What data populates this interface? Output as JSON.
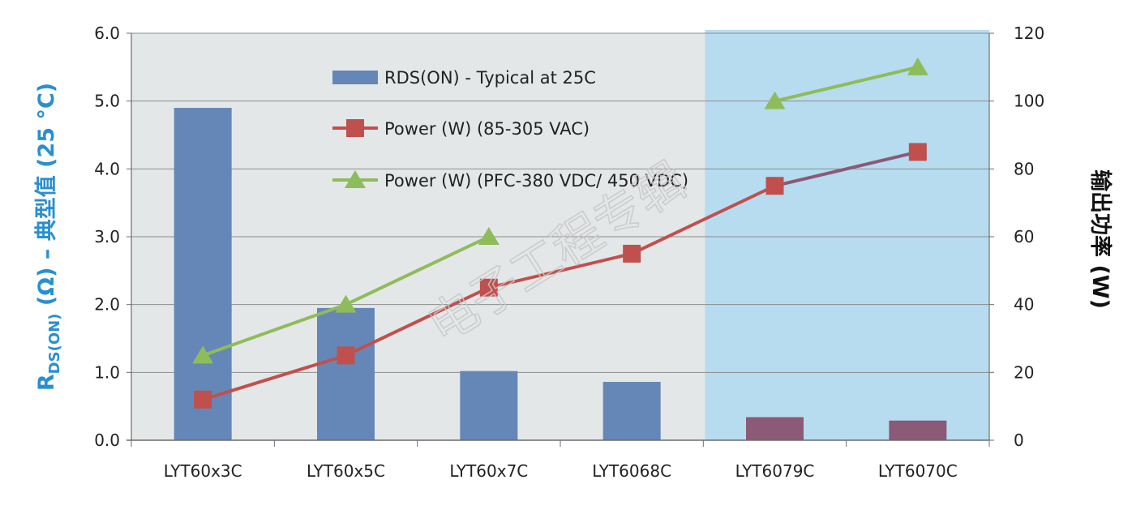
{
  "chart_data": {
    "type": "bar",
    "categories": [
      "LYT60x3C",
      "LYT60x5C",
      "LYT60x7C",
      "LYT6068C",
      "LYT6079C",
      "LYT6070C"
    ],
    "y_axis_left": {
      "label_main": "R",
      "label_sub": "DS(ON)",
      "label_rest": " (Ω) – 典型值 (25 °C)",
      "range": [
        0,
        6
      ],
      "ticks": [
        "0.0",
        "1.0",
        "2.0",
        "3.0",
        "4.0",
        "5.0",
        "6.0"
      ],
      "color": "#2a8fd0"
    },
    "y_axis_right": {
      "label": "输出功率 (W)",
      "range": [
        0,
        120
      ],
      "ticks": [
        "0",
        "20",
        "40",
        "60",
        "80",
        "100",
        "120"
      ]
    },
    "series": [
      {
        "name": "RDS(ON) - Typical at 25C",
        "kind": "bar",
        "axis": "left",
        "values": [
          4.9,
          1.95,
          1.02,
          0.86,
          0.34,
          0.29
        ],
        "color": "#6587b8",
        "highlight_color": "#8a5a76"
      },
      {
        "name": "Power (W) (85-305 VAC)",
        "kind": "line",
        "marker": "square",
        "axis": "right",
        "values": [
          12,
          25,
          45,
          55,
          75,
          85
        ],
        "color": "#c0504d",
        "highlight_color": "#8a5a76"
      },
      {
        "name": "Power (W) (PFC-380 VDC/ 450 VDC)",
        "kind": "line",
        "marker": "triangle",
        "axis": "right",
        "values": [
          25,
          40,
          60,
          null,
          100,
          110
        ],
        "color": "#8fbc5a"
      }
    ],
    "highlight_categories": [
      "LYT6079C",
      "LYT6070C"
    ],
    "background_color": "#e4e7e8",
    "highlight_region_color": "#b7dcf0",
    "grid": true,
    "legend_position": "top-center",
    "watermark": "电子工程专辑"
  }
}
